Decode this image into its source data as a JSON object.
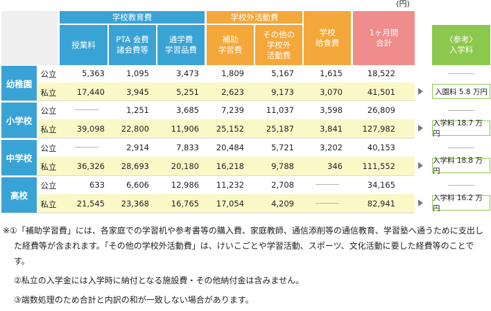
{
  "unit": "(円)",
  "headers": {
    "group_school": "学校教育費",
    "group_outside": "学校外活動費",
    "tuition": "授業料",
    "pta": "PTA 会費\n諸会費等",
    "commute": "通学費\n学習品費",
    "supplementary": "補助\n学習費",
    "other_outside": "その他の\n学校外\n活動費",
    "lunch": "学校\n給食費",
    "monthly_total": "1ヶ月間\n合計",
    "admission": "〈参考〉\n入学料"
  },
  "rows": [
    {
      "school": "幼稚園",
      "type": "公立",
      "values": [
        "5,363",
        "1,095",
        "3,473",
        "1,809",
        "5,167",
        "1,615",
        "18,522"
      ],
      "admission": ""
    },
    {
      "school": "",
      "type": "私立",
      "values": [
        "17,440",
        "3,945",
        "5,251",
        "2,623",
        "9,173",
        "3,070",
        "41,501"
      ],
      "admission": "入園料 5.8 万円"
    },
    {
      "school": "小学校",
      "type": "公立",
      "values": [
        "",
        "1,251",
        "3,685",
        "7,239",
        "11,037",
        "3,598",
        "26,809"
      ],
      "admission": ""
    },
    {
      "school": "",
      "type": "私立",
      "values": [
        "39,098",
        "22,800",
        "11,906",
        "25,152",
        "25,187",
        "3,841",
        "127,982"
      ],
      "admission": "入学料 18.7 万円"
    },
    {
      "school": "中学校",
      "type": "公立",
      "values": [
        "",
        "2,914",
        "7,833",
        "20,484",
        "5,721",
        "3,202",
        "40,153"
      ],
      "admission": ""
    },
    {
      "school": "",
      "type": "私立",
      "values": [
        "36,326",
        "28,693",
        "20,180",
        "16,218",
        "9,788",
        "346",
        "111,552"
      ],
      "admission": "入学料 18.8 万円"
    },
    {
      "school": "高校",
      "type": "公立",
      "values": [
        "633",
        "6,606",
        "12,986",
        "11,232",
        "2,708",
        "",
        "34,165"
      ],
      "admission": ""
    },
    {
      "school": "",
      "type": "私立",
      "values": [
        "21,545",
        "23,368",
        "16,765",
        "17,054",
        "4,209",
        "",
        "82,941"
      ],
      "admission": "入学料 16.2 万円"
    }
  ],
  "notes": {
    "n1": "※①「補助学習費」には、各家庭での学習机や参考書等の購入費、家庭教師、通信添削等の通信教育、学習塾へ通うために支出した経費等が含まれます。「その他の学校外活動費」は、けいこごとや学習活動、スポーツ、文化活動に要した経費等のことです。",
    "n2": "②私立の入学金には入学時に納付となる施設費・その他納付金は含みません。",
    "n3": "③端数処理のため合計と内訳の和が一致しない場合があります。"
  }
}
